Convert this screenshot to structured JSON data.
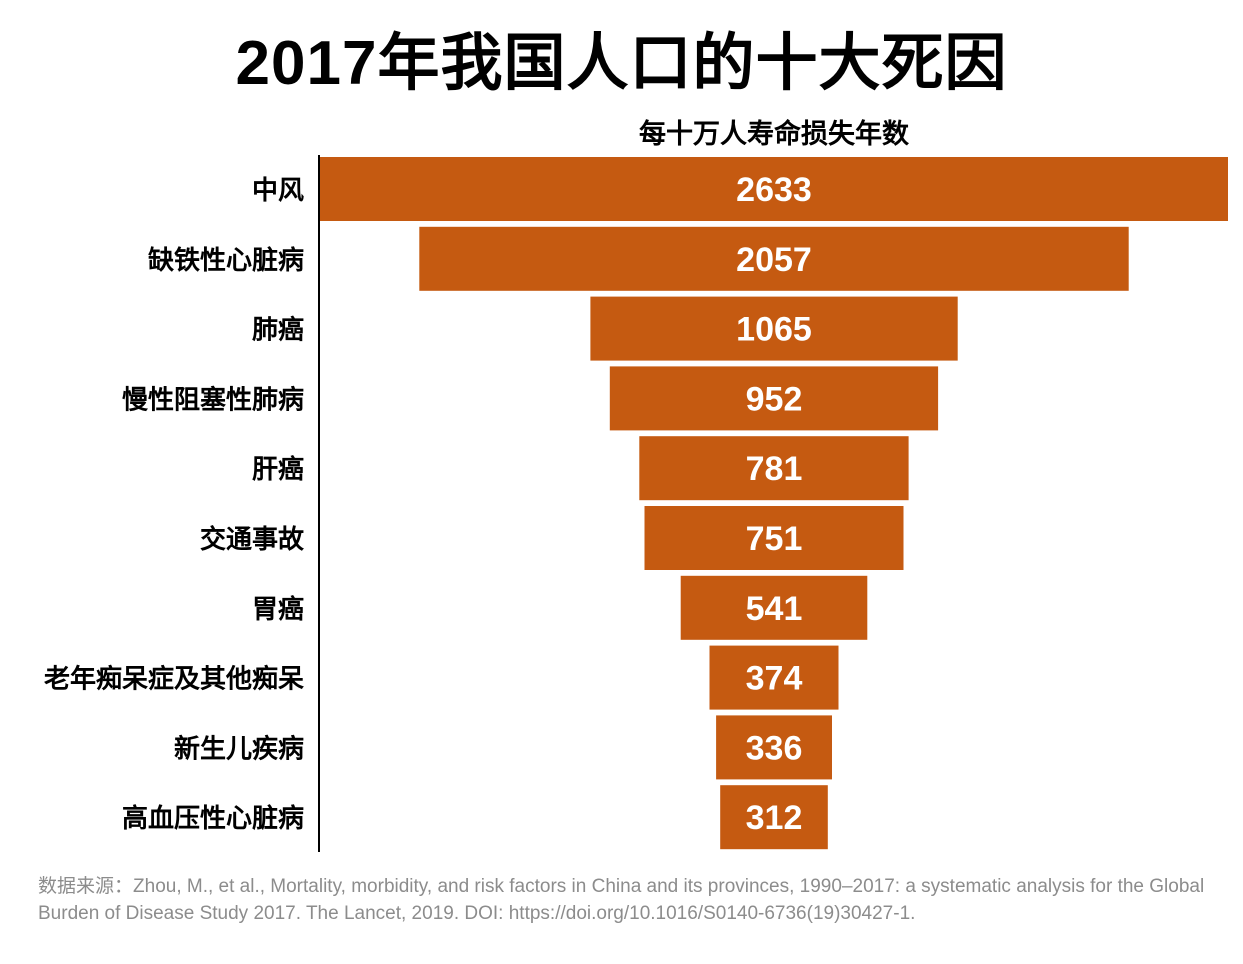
{
  "title": "2017年我国人口的十大死因",
  "subtitle": "每十万人寿命损失年数",
  "source": {
    "label": "数据来源：",
    "text": "Zhou, M., et al., Mortality, morbidity, and risk factors in China and its provinces, 1990–2017: a systematic analysis for the Global Burden of Disease Study 2017. The Lancet, 2019. DOI: https://doi.org/10.1016/S0140-6736(19)30427-1."
  },
  "chart_data": {
    "type": "bar",
    "orientation": "horizontal-centered-funnel",
    "title": "2017年我国人口的十大死因",
    "subtitle": "每十万人寿命损失年数",
    "categories": [
      "中风",
      "缺铁性心脏病",
      "肺癌",
      "慢性阻塞性肺病",
      "肝癌",
      "交通事故",
      "胃癌",
      "老年痴呆症及其他痴呆",
      "新生儿疾病",
      "高血压性心脏病"
    ],
    "values": [
      2633,
      2057,
      1065,
      952,
      781,
      751,
      541,
      374,
      336,
      312
    ],
    "value_labels": [
      "2633",
      "2057",
      "1065",
      "952",
      "781",
      "751",
      "541",
      "374",
      "336",
      "312"
    ],
    "xlim": [
      0,
      2633
    ],
    "bar_color": "#c55a11",
    "label_color": "#ffffff",
    "grid": false,
    "legend": "none"
  }
}
